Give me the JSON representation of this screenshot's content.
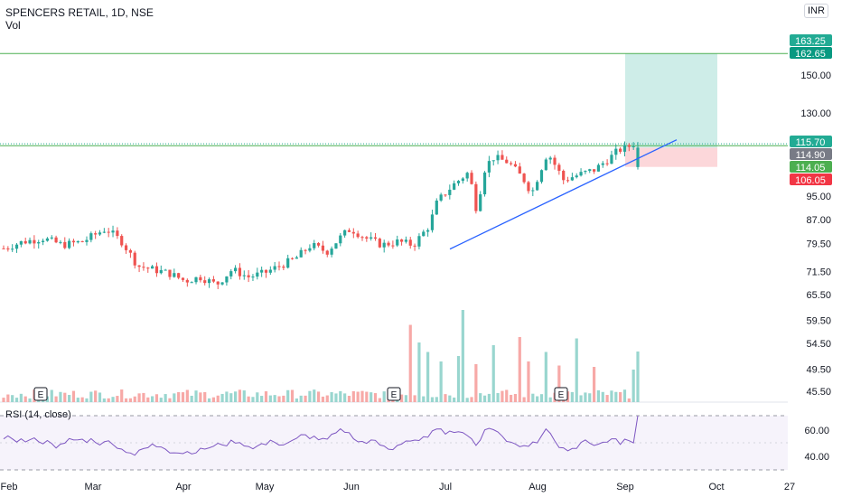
{
  "header": {
    "title": "SPENCERS RETAIL, 1D, NSE",
    "volume_label": "Vol",
    "currency": "INR"
  },
  "chart_data": {
    "type": "candlestick",
    "price_axis_labels": [
      "150.00",
      "130.00",
      "95.00",
      "87.00",
      "79.50",
      "71.50",
      "65.50",
      "59.50",
      "54.50",
      "49.50",
      "45.50"
    ],
    "price_badges": [
      {
        "text": "163.25",
        "color": "#22ab94"
      },
      {
        "text": "162.65",
        "color": "#089981"
      },
      {
        "text": "115.70",
        "color": "#22ab94"
      },
      {
        "text": "114.90",
        "color": "#787b86"
      },
      {
        "text": "114.05",
        "color": "#4caf50"
      },
      {
        "text": "106.05",
        "color": "#f23645"
      }
    ],
    "x_tick_labels": [
      "Feb",
      "Mar",
      "Apr",
      "May",
      "Jun",
      "Jul",
      "Aug",
      "Sep",
      "Oct",
      "27"
    ],
    "earnings_markers": [
      "E",
      "E",
      "E"
    ],
    "rsi": {
      "label": "RSI (14, close)",
      "axis_labels": [
        "60.00",
        "40.00"
      ],
      "upper": 70,
      "lower": 30,
      "series_color": "#7e57c2"
    },
    "position_tool": {
      "entry": 114.05,
      "target": 162.65,
      "stop": 106.05
    },
    "horizontal_lines": [
      162.65,
      114.9
    ],
    "trendline": {
      "from_price": 77.8,
      "to_price": 112.0
    },
    "colors": {
      "up": "#26a69a",
      "down": "#ef5350",
      "vol_up": "#99d6cf",
      "vol_down": "#f7a9a7",
      "trendline": "#2962ff",
      "level_line": "#4caf50"
    }
  }
}
